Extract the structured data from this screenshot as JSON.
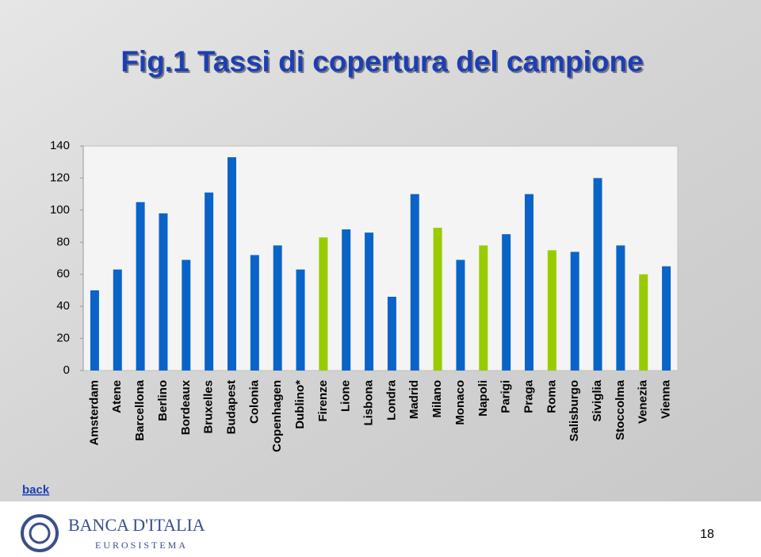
{
  "chart_data": {
    "type": "bar",
    "title": "Fig.1 Tassi di copertura del campione",
    "categories": [
      "Amsterdam",
      "Atene",
      "Barcellona",
      "Berlino",
      "Bordeaux",
      "Bruxelles",
      "Budapest",
      "Colonia",
      "Copenhagen",
      "Dublino*",
      "Firenze",
      "Lione",
      "Lisbona",
      "Londra",
      "Madrid",
      "Milano",
      "Monaco",
      "Napoli",
      "Parigi",
      "Praga",
      "Roma",
      "Salisburgo",
      "Siviglia",
      "Stoccolma",
      "Venezia",
      "Vienna"
    ],
    "values": [
      50,
      63,
      105,
      98,
      69,
      111,
      133,
      72,
      78,
      63,
      83,
      88,
      86,
      46,
      110,
      89,
      69,
      78,
      85,
      110,
      75,
      74,
      120,
      78,
      60,
      65
    ],
    "colors": [
      "#0a64c8",
      "#0a64c8",
      "#0a64c8",
      "#0a64c8",
      "#0a64c8",
      "#0a64c8",
      "#0a64c8",
      "#0a64c8",
      "#0a64c8",
      "#0a64c8",
      "#99cc00",
      "#0a64c8",
      "#0a64c8",
      "#0a64c8",
      "#0a64c8",
      "#99cc00",
      "#0a64c8",
      "#99cc00",
      "#0a64c8",
      "#0a64c8",
      "#99cc00",
      "#0a64c8",
      "#0a64c8",
      "#0a64c8",
      "#99cc00",
      "#0a64c8"
    ],
    "ylim": [
      0,
      140
    ],
    "yticks": [
      0,
      20,
      40,
      60,
      80,
      100,
      120,
      140
    ],
    "grid": false
  },
  "slide": {
    "back": "back",
    "bank": "BANCA D'ITALIA",
    "system": "EUROSISTEMA",
    "page_number": 18
  }
}
